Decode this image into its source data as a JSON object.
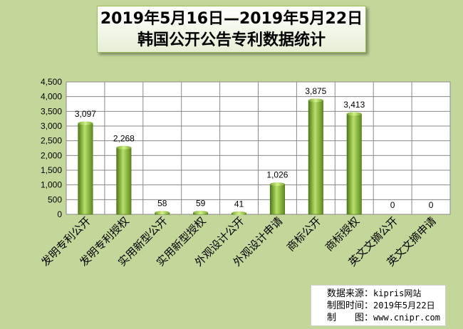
{
  "title": {
    "line1": "2019年5月16日—2019年5月22日",
    "line2": "韩国公开公告专利数据统计"
  },
  "chart_data": {
    "type": "bar",
    "title": "2019年5月16日—2019年5月22日 韩国公开公告专利数据统计",
    "categories": [
      "发明专利公开",
      "发明专利授权",
      "实用新型公开",
      "实用新型授权",
      "外观设计公开",
      "外观设计申请",
      "商标公开",
      "商标授权",
      "英文文摘公开",
      "英文文摘申请"
    ],
    "values": [
      3097,
      2268,
      58,
      59,
      41,
      1026,
      3875,
      3413,
      0,
      0
    ],
    "value_labels": [
      "3,097",
      "2,268",
      "58",
      "59",
      "41",
      "1,026",
      "3,875",
      "3,413",
      "0",
      "0"
    ],
    "ylim": [
      0,
      4500
    ],
    "yticks": [
      0,
      500,
      1000,
      1500,
      2000,
      2500,
      3000,
      3500,
      4000,
      4500
    ],
    "ytick_labels": [
      "0",
      "500",
      "1,000",
      "1,500",
      "2,000",
      "2,500",
      "3,000",
      "3,500",
      "4,000",
      "4,500"
    ],
    "xlabel": "",
    "ylabel": "",
    "grid": true,
    "bar_color": "#92c13d",
    "plot_background": "#ffffff",
    "page_background": "#c4d79b"
  },
  "source": {
    "data_source_label": "数据来源：",
    "data_source_value": "kipris网站",
    "made_time_label": "制图时间：",
    "made_time_value": "2019年5月22日",
    "made_by_label": "制　　图：",
    "made_by_value": "www.cnipr.com"
  }
}
